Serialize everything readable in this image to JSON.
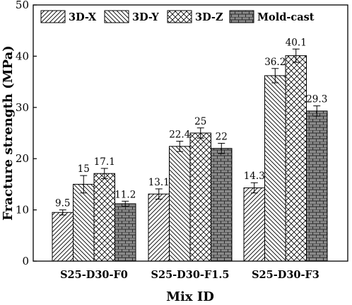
{
  "chart_data": {
    "type": "bar",
    "title": "",
    "xlabel": "Mix ID",
    "ylabel": "Fracture strength (MPa)",
    "ylim": [
      0,
      50
    ],
    "yticks": [
      0,
      10,
      20,
      30,
      40,
      50
    ],
    "grid": false,
    "legend_position": "top",
    "categories": [
      "S25-D30-F0",
      "S25-D30-F1.5",
      "S25-D30-F3"
    ],
    "series": [
      {
        "name": "3D-X",
        "values": [
          9.5,
          13.1,
          14.3
        ],
        "errors": [
          0.5,
          1.0,
          1.0
        ],
        "labels": [
          "9.5",
          "13.1",
          "14.3"
        ],
        "pattern": "diagonal-dense",
        "color": "#ffffff"
      },
      {
        "name": "3D-Y",
        "values": [
          15,
          22.4,
          36.2
        ],
        "errors": [
          1.7,
          1.0,
          1.4
        ],
        "labels": [
          "15",
          "22.4",
          "36.2"
        ],
        "pattern": "diagonal-sparse",
        "color": "#ffffff"
      },
      {
        "name": "3D-Z",
        "values": [
          17.1,
          25,
          40.1
        ],
        "errors": [
          1.0,
          1.0,
          1.3
        ],
        "labels": [
          "17.1",
          "25",
          "40.1"
        ],
        "pattern": "crosshatch",
        "color": "#ffffff"
      },
      {
        "name": "Mold-cast",
        "values": [
          11.2,
          22,
          29.3
        ],
        "errors": [
          0.5,
          1.0,
          1.0
        ],
        "labels": [
          "11.2",
          "22",
          "29.3"
        ],
        "pattern": "brick",
        "color": "#8a8a8a"
      }
    ]
  }
}
